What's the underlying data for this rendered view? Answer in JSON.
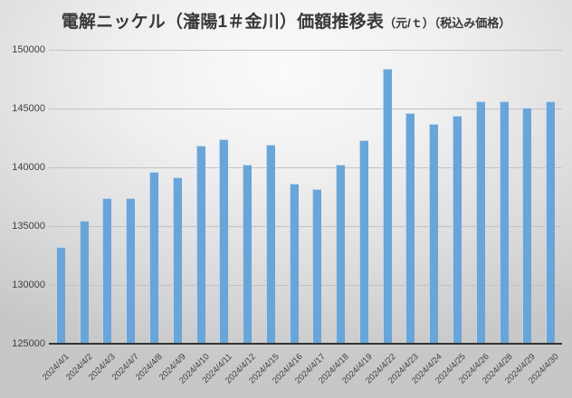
{
  "title": {
    "main": "電解ニッケル（瀋陽1＃金川）価額推移表",
    "unit": "（元/ｔ）",
    "note": "（税込み価格）"
  },
  "chart_data": {
    "type": "bar",
    "title": "電解ニッケル（瀋陽1＃金川）価額推移表（元/ｔ）（税込み価格）",
    "categories": [
      "2024/4/1",
      "2024/4/2",
      "2024/4/3",
      "2024/4/7",
      "2024/4/8",
      "2024/4/9",
      "2024/4/10",
      "2024/4/11",
      "2024/4/12",
      "2024/4/15",
      "2024/4/16",
      "2024/4/17",
      "2024/4/18",
      "2024/4/19",
      "2024/4/22",
      "2024/4/23",
      "2024/4/24",
      "2024/4/25",
      "2024/4/26",
      "2024/4/28",
      "2024/4/29",
      "2024/4/30"
    ],
    "values": [
      133200,
      135500,
      137350,
      137350,
      139650,
      139150,
      141850,
      142350,
      140250,
      141950,
      138650,
      138150,
      140250,
      142300,
      148350,
      144650,
      143700,
      144400,
      145650,
      145650,
      145100,
      145600
    ],
    "xlabel": "",
    "ylabel": "",
    "ylim": [
      125000,
      150000
    ],
    "yticks": [
      125000,
      130000,
      135000,
      140000,
      145000,
      150000
    ],
    "grid": true,
    "legend": false,
    "bar_color": "#69a5d8",
    "gridline_color": "#c2c2c2",
    "axis_line_color": "#333333",
    "label_color": "#404040"
  }
}
